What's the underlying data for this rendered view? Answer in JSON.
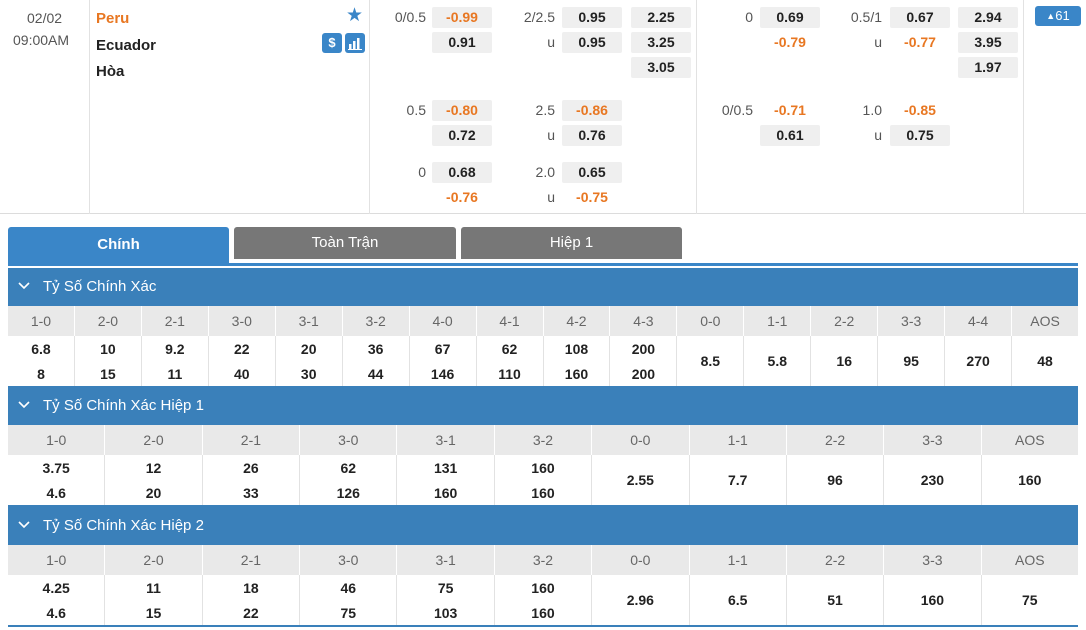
{
  "match": {
    "date": "02/02",
    "time": "09:00AM",
    "home_team": "Peru",
    "away_team": "Ecuador",
    "draw_label": "Hòa",
    "dollar_label": "$",
    "more_count": "61",
    "more_arrow": "▲",
    "star_icon": "★"
  },
  "odds": {
    "ft_handicap": [
      {
        "line": "0/0.5",
        "home": "-0.99",
        "away": "0.91"
      },
      {
        "line": "0.5",
        "home": "-0.80",
        "away": "0.72"
      },
      {
        "line": "0",
        "home": "0.68",
        "away": "-0.76"
      }
    ],
    "ft_overunder": [
      {
        "line": "2/2.5",
        "over": "0.95",
        "u": "u",
        "under": "0.95"
      },
      {
        "line": "2.5",
        "over": "-0.86",
        "u": "u",
        "under": "0.76"
      },
      {
        "line": "2.0",
        "over": "0.65",
        "u": "u",
        "under": "-0.75"
      }
    ],
    "ft_1x2": [
      "2.25",
      "3.25",
      "3.05"
    ],
    "h1_handicap": [
      {
        "line": "0",
        "home": "0.69",
        "away": "-0.79"
      },
      {
        "line": "0/0.5",
        "home": "-0.71",
        "away": "0.61"
      }
    ],
    "h1_overunder": [
      {
        "line": "0.5/1",
        "over": "0.67",
        "u": "u",
        "under": "-0.77"
      },
      {
        "line": "1.0",
        "over": "-0.85",
        "u": "u",
        "under": "0.75"
      }
    ],
    "h1_1x2": [
      "2.94",
      "3.95",
      "1.97"
    ]
  },
  "tabs": {
    "main": "Chính",
    "full": "Toàn Trận",
    "half": "Hiệp 1"
  },
  "sections": [
    {
      "title": "Tỷ Số Chính Xác",
      "scores": [
        "1-0",
        "2-0",
        "2-1",
        "3-0",
        "3-1",
        "3-2",
        "4-0",
        "4-1",
        "4-2",
        "4-3",
        "0-0",
        "1-1",
        "2-2",
        "3-3",
        "4-4",
        "AOS"
      ],
      "home": [
        "6.8",
        "10",
        "9.2",
        "22",
        "20",
        "36",
        "67",
        "62",
        "108",
        "200",
        "8.5",
        "5.8",
        "16",
        "95",
        "270",
        "48"
      ],
      "away": [
        "8",
        "15",
        "11",
        "40",
        "30",
        "44",
        "146",
        "110",
        "160",
        "200",
        "",
        "",
        "",
        "",
        "",
        ""
      ]
    },
    {
      "title": "Tỷ Số Chính Xác Hiệp 1",
      "scores": [
        "1-0",
        "2-0",
        "2-1",
        "3-0",
        "3-1",
        "3-2",
        "0-0",
        "1-1",
        "2-2",
        "3-3",
        "AOS"
      ],
      "home": [
        "3.75",
        "12",
        "26",
        "62",
        "131",
        "160",
        "2.55",
        "7.7",
        "96",
        "230",
        "160"
      ],
      "away": [
        "4.6",
        "20",
        "33",
        "126",
        "160",
        "160",
        "",
        "",
        "",
        "",
        ""
      ]
    },
    {
      "title": "Tỷ Số Chính Xác Hiệp 2",
      "scores": [
        "1-0",
        "2-0",
        "2-1",
        "3-0",
        "3-1",
        "3-2",
        "0-0",
        "1-1",
        "2-2",
        "3-3",
        "AOS"
      ],
      "home": [
        "4.25",
        "11",
        "18",
        "46",
        "75",
        "160",
        "2.96",
        "6.5",
        "51",
        "160",
        "75"
      ],
      "away": [
        "4.6",
        "15",
        "22",
        "75",
        "103",
        "160",
        "",
        "",
        "",
        "",
        ""
      ]
    }
  ]
}
